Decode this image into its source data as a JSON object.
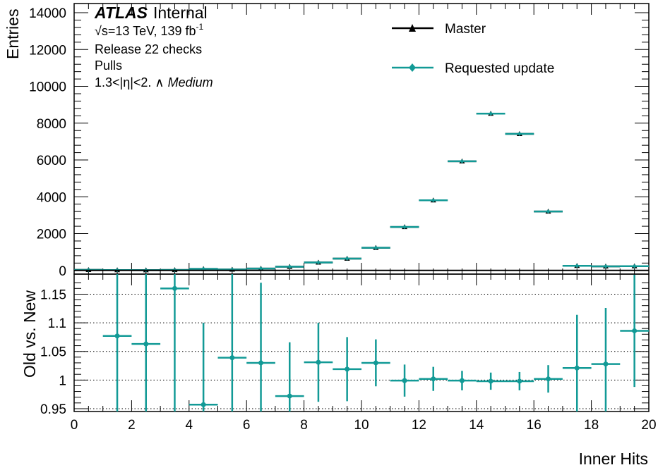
{
  "chart_data": {
    "type": "scatter",
    "xlabel": "Inner Hits",
    "x_ticks": [
      "0",
      "2",
      "4",
      "6",
      "8",
      "10",
      "12",
      "14",
      "16",
      "18",
      "20"
    ],
    "xlim": [
      0,
      20
    ],
    "annotation": {
      "brand": "ATLAS",
      "status": "Internal",
      "energy": "√s=13 TeV, 139 fb",
      "energy_exp": "-1",
      "lines": [
        "Release 22 checks",
        "Pulls",
        "1.3<|η|<2. ∧ "
      ],
      "wp": "Medium"
    },
    "legend": {
      "placement": "top-right",
      "entries": [
        {
          "label": "Master",
          "color": "#000000"
        },
        {
          "label": "Requested update",
          "color": "#129a96"
        }
      ]
    },
    "top": {
      "ylabel": "Entries",
      "ylim": [
        -200,
        14500
      ],
      "y_ticks": [
        "0",
        "2000",
        "4000",
        "6000",
        "8000",
        "10000",
        "12000",
        "14000"
      ],
      "series": [
        {
          "name": "Master",
          "color": "#000000",
          "x": [
            0.5,
            1.5,
            2.5,
            3.5,
            4.5,
            5.5,
            6.5,
            7.5,
            8.5,
            9.5,
            10.5,
            11.5,
            12.5,
            13.5,
            14.5,
            15.5,
            16.5,
            17.5,
            18.5,
            19.5
          ],
          "y": [
            30,
            20,
            15,
            25,
            80,
            50,
            100,
            200,
            430,
            640,
            1230,
            2360,
            3810,
            5930,
            8520,
            7420,
            3200,
            250,
            220,
            230
          ]
        },
        {
          "name": "Requested update",
          "color": "#129a96",
          "x": [
            0.5,
            1.5,
            2.5,
            3.5,
            4.5,
            5.5,
            6.5,
            7.5,
            8.5,
            9.5,
            10.5,
            11.5,
            12.5,
            13.5,
            14.5,
            15.5,
            16.5,
            17.5,
            18.5,
            19.5
          ],
          "y": [
            30,
            20,
            15,
            25,
            80,
            50,
            100,
            200,
            430,
            640,
            1230,
            2360,
            3810,
            5930,
            8520,
            7420,
            3200,
            250,
            220,
            230
          ]
        }
      ]
    },
    "ratio": {
      "ylabel": "Old vs. New",
      "ylim": [
        0.945,
        1.185
      ],
      "y_ticks": [
        "0.95",
        "1",
        "1.05",
        "1.1",
        "1.15"
      ],
      "grid": true,
      "color": "#129a96",
      "x": [
        1.5,
        2.5,
        3.5,
        4.5,
        5.5,
        6.5,
        7.5,
        8.5,
        9.5,
        10.5,
        11.5,
        12.5,
        13.5,
        14.5,
        15.5,
        16.5,
        17.5,
        18.5,
        19.5
      ],
      "y": [
        1.077,
        1.063,
        1.16,
        0.957,
        1.039,
        1.03,
        0.972,
        1.031,
        1.019,
        1.03,
        0.999,
        1.002,
        0.999,
        0.998,
        0.998,
        1.002,
        1.021,
        1.028,
        1.086
      ],
      "y_err": [
        0.25,
        0.25,
        0.25,
        0.143,
        0.25,
        0.14,
        0.094,
        0.069,
        0.056,
        0.041,
        0.028,
        0.021,
        0.017,
        0.015,
        0.016,
        0.024,
        0.093,
        0.098,
        0.098
      ]
    }
  }
}
